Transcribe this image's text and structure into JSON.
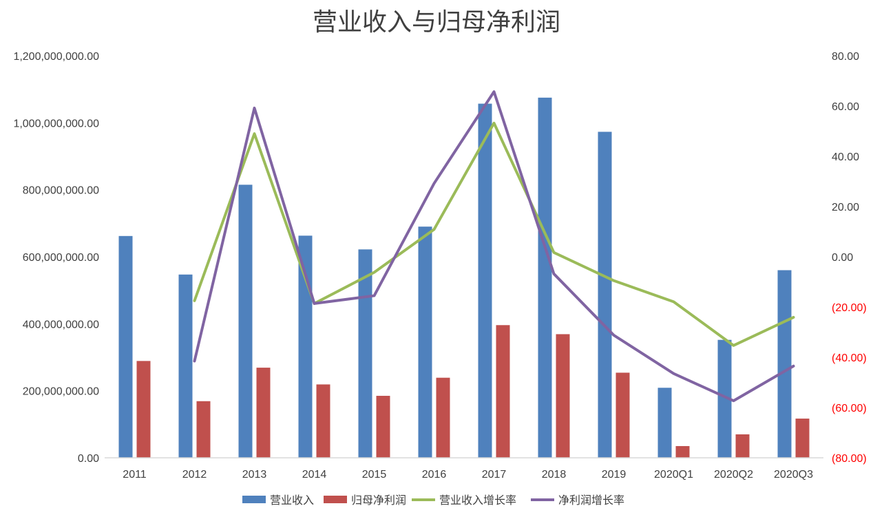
{
  "chart_data": {
    "type": "bar",
    "title": "营业收入与归母净利润",
    "categories": [
      "2011",
      "2012",
      "2013",
      "2014",
      "2015",
      "2016",
      "2017",
      "2018",
      "2019",
      "2020Q1",
      "2020Q2",
      "2020Q3"
    ],
    "series": [
      {
        "name": "营业收入",
        "kind": "bar",
        "axis": "left",
        "color": "#4F81BD",
        "values": [
          662000000,
          547000000,
          815000000,
          663000000,
          622000000,
          690000000,
          1057000000,
          1075000000,
          973000000,
          209000000,
          352000000,
          560000000
        ]
      },
      {
        "name": "归母净利润",
        "kind": "bar",
        "axis": "left",
        "color": "#C0504D",
        "values": [
          289000000,
          169000000,
          269000000,
          219000000,
          185000000,
          239000000,
          396000000,
          369000000,
          254000000,
          35000000,
          70000000,
          117000000
        ]
      },
      {
        "name": "营业收入增长率",
        "kind": "line",
        "axis": "right",
        "color": "#9BBB59",
        "values": [
          null,
          -17.5,
          49.0,
          -18.6,
          -6.2,
          10.9,
          53.2,
          1.7,
          -9.5,
          -17.9,
          -35.3,
          -24.1
        ]
      },
      {
        "name": "净利润增长率",
        "kind": "line",
        "axis": "right",
        "color": "#8064A2",
        "values": [
          null,
          -41.5,
          59.2,
          -18.6,
          -15.5,
          29.2,
          65.7,
          -6.8,
          -31.2,
          -46.5,
          -57.3,
          -43.5
        ]
      }
    ],
    "y_left": {
      "min": 0,
      "max": 1200000000,
      "ticks": [
        "0.00",
        "200,000,000.00",
        "400,000,000.00",
        "600,000,000.00",
        "800,000,000.00",
        "1,000,000,000.00",
        "1,200,000,000.00"
      ]
    },
    "y_right": {
      "min": -80,
      "max": 80,
      "ticks": [
        "(80.00)",
        "(60.00)",
        "(40.00)",
        "(20.00)",
        "0.00",
        "20.00",
        "40.00",
        "60.00",
        "80.00"
      ],
      "negative_color": "#FF0000"
    },
    "grid": false,
    "legend_position": "bottom"
  }
}
